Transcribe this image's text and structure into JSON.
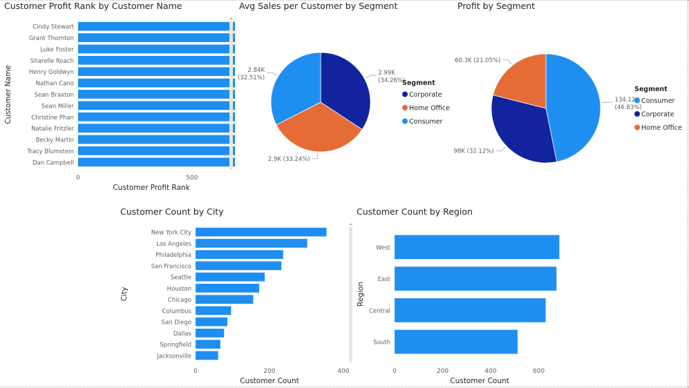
{
  "colors": {
    "bar": "#1f8ef1",
    "corporate": "#12239e",
    "home_office": "#e66c37",
    "consumer": "#1f8ef1",
    "text": "#252423",
    "axis_text": "#605e5c",
    "scrollbar": "#e6e6e6"
  },
  "chart_data": [
    {
      "id": "profit_rank",
      "type": "bar",
      "orientation": "horizontal",
      "title": "Customer Profit Rank by Customer Name",
      "xlabel": "Customer Profit Rank",
      "ylabel": "Customer Name",
      "categories": [
        "Cindy Stewart",
        "Grant Thornton",
        "Luke Foster",
        "Sharelle Roach",
        "Henry Goldwyn",
        "Nathan Cano",
        "Sean Braxton",
        "Sean Miller",
        "Christine Phan",
        "Natalie Fritzler",
        "Becky Martin",
        "Tracy Blumstein",
        "Dan Campbell"
      ],
      "values": [
        793,
        792,
        791,
        790,
        789,
        788,
        787,
        786,
        785,
        784,
        783,
        782,
        781
      ],
      "xticks": [
        0,
        500
      ],
      "xlim": [
        0,
        800
      ]
    },
    {
      "id": "avg_sales_segment",
      "type": "pie",
      "title": "Avg Sales per Customer by Segment",
      "legend_title": "Segment",
      "legend": [
        "Corporate",
        "Home Office",
        "Consumer"
      ],
      "slices": [
        {
          "name": "Corporate",
          "value": 2.99,
          "label": "2.99K",
          "pct": "(34.26%)"
        },
        {
          "name": "Home Office",
          "value": 2.9,
          "label": "2.9K (33.24%)"
        },
        {
          "name": "Consumer",
          "value": 2.84,
          "label": "2.84K",
          "pct": "(32.51%)"
        }
      ]
    },
    {
      "id": "profit_segment",
      "type": "pie",
      "title": "Profit by Segment",
      "legend_title": "Segment",
      "legend": [
        "Consumer",
        "Corporate",
        "Home Office"
      ],
      "slices": [
        {
          "name": "Consumer",
          "value": 134.12,
          "label": "134.12K",
          "pct": "(46.83%)"
        },
        {
          "name": "Corporate",
          "value": 91.98,
          "label": "91.98K (32.12%)"
        },
        {
          "name": "Home Office",
          "value": 60.3,
          "label": "60.3K (21.05%)"
        }
      ]
    },
    {
      "id": "count_city",
      "type": "bar",
      "orientation": "horizontal",
      "title": "Customer Count by City",
      "xlabel": "Customer Count",
      "ylabel": "City",
      "categories": [
        "New York City",
        "Los Angeles",
        "Philadelphia",
        "San Francisco",
        "Seattle",
        "Houston",
        "Chicago",
        "Columbus",
        "San Diego",
        "Dallas",
        "Springfield",
        "Jacksonville"
      ],
      "values": [
        354,
        302,
        237,
        232,
        187,
        172,
        156,
        96,
        86,
        77,
        67,
        61
      ],
      "xticks": [
        0,
        200,
        400
      ],
      "xlim": [
        0,
        400
      ]
    },
    {
      "id": "count_region",
      "type": "bar",
      "orientation": "horizontal",
      "title": "Customer Count by Region",
      "xlabel": "Customer Count",
      "ylabel": "Region",
      "categories": [
        "West",
        "East",
        "Central",
        "South"
      ],
      "values": [
        686,
        674,
        629,
        512
      ],
      "xticks": [
        0,
        200,
        400,
        600
      ],
      "xlim": [
        0,
        600
      ]
    }
  ]
}
